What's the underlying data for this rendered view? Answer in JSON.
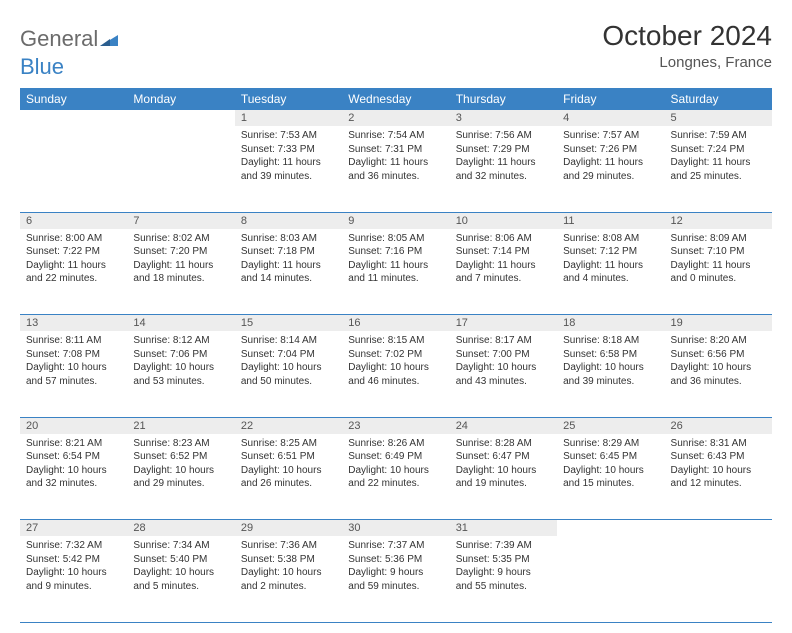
{
  "brand": {
    "part1": "General",
    "part2": "Blue"
  },
  "title": "October 2024",
  "location": "Longnes, France",
  "weekday_header_bg": "#3a82c4",
  "weekday_header_fg": "#ffffff",
  "daynum_bg": "#ededed",
  "row_divider_color": "#3a82c4",
  "weekdays": [
    "Sunday",
    "Monday",
    "Tuesday",
    "Wednesday",
    "Thursday",
    "Friday",
    "Saturday"
  ],
  "weeks": [
    [
      null,
      null,
      {
        "n": "1",
        "sr": "Sunrise: 7:53 AM",
        "ss": "Sunset: 7:33 PM",
        "d1": "Daylight: 11 hours",
        "d2": "and 39 minutes."
      },
      {
        "n": "2",
        "sr": "Sunrise: 7:54 AM",
        "ss": "Sunset: 7:31 PM",
        "d1": "Daylight: 11 hours",
        "d2": "and 36 minutes."
      },
      {
        "n": "3",
        "sr": "Sunrise: 7:56 AM",
        "ss": "Sunset: 7:29 PM",
        "d1": "Daylight: 11 hours",
        "d2": "and 32 minutes."
      },
      {
        "n": "4",
        "sr": "Sunrise: 7:57 AM",
        "ss": "Sunset: 7:26 PM",
        "d1": "Daylight: 11 hours",
        "d2": "and 29 minutes."
      },
      {
        "n": "5",
        "sr": "Sunrise: 7:59 AM",
        "ss": "Sunset: 7:24 PM",
        "d1": "Daylight: 11 hours",
        "d2": "and 25 minutes."
      }
    ],
    [
      {
        "n": "6",
        "sr": "Sunrise: 8:00 AM",
        "ss": "Sunset: 7:22 PM",
        "d1": "Daylight: 11 hours",
        "d2": "and 22 minutes."
      },
      {
        "n": "7",
        "sr": "Sunrise: 8:02 AM",
        "ss": "Sunset: 7:20 PM",
        "d1": "Daylight: 11 hours",
        "d2": "and 18 minutes."
      },
      {
        "n": "8",
        "sr": "Sunrise: 8:03 AM",
        "ss": "Sunset: 7:18 PM",
        "d1": "Daylight: 11 hours",
        "d2": "and 14 minutes."
      },
      {
        "n": "9",
        "sr": "Sunrise: 8:05 AM",
        "ss": "Sunset: 7:16 PM",
        "d1": "Daylight: 11 hours",
        "d2": "and 11 minutes."
      },
      {
        "n": "10",
        "sr": "Sunrise: 8:06 AM",
        "ss": "Sunset: 7:14 PM",
        "d1": "Daylight: 11 hours",
        "d2": "and 7 minutes."
      },
      {
        "n": "11",
        "sr": "Sunrise: 8:08 AM",
        "ss": "Sunset: 7:12 PM",
        "d1": "Daylight: 11 hours",
        "d2": "and 4 minutes."
      },
      {
        "n": "12",
        "sr": "Sunrise: 8:09 AM",
        "ss": "Sunset: 7:10 PM",
        "d1": "Daylight: 11 hours",
        "d2": "and 0 minutes."
      }
    ],
    [
      {
        "n": "13",
        "sr": "Sunrise: 8:11 AM",
        "ss": "Sunset: 7:08 PM",
        "d1": "Daylight: 10 hours",
        "d2": "and 57 minutes."
      },
      {
        "n": "14",
        "sr": "Sunrise: 8:12 AM",
        "ss": "Sunset: 7:06 PM",
        "d1": "Daylight: 10 hours",
        "d2": "and 53 minutes."
      },
      {
        "n": "15",
        "sr": "Sunrise: 8:14 AM",
        "ss": "Sunset: 7:04 PM",
        "d1": "Daylight: 10 hours",
        "d2": "and 50 minutes."
      },
      {
        "n": "16",
        "sr": "Sunrise: 8:15 AM",
        "ss": "Sunset: 7:02 PM",
        "d1": "Daylight: 10 hours",
        "d2": "and 46 minutes."
      },
      {
        "n": "17",
        "sr": "Sunrise: 8:17 AM",
        "ss": "Sunset: 7:00 PM",
        "d1": "Daylight: 10 hours",
        "d2": "and 43 minutes."
      },
      {
        "n": "18",
        "sr": "Sunrise: 8:18 AM",
        "ss": "Sunset: 6:58 PM",
        "d1": "Daylight: 10 hours",
        "d2": "and 39 minutes."
      },
      {
        "n": "19",
        "sr": "Sunrise: 8:20 AM",
        "ss": "Sunset: 6:56 PM",
        "d1": "Daylight: 10 hours",
        "d2": "and 36 minutes."
      }
    ],
    [
      {
        "n": "20",
        "sr": "Sunrise: 8:21 AM",
        "ss": "Sunset: 6:54 PM",
        "d1": "Daylight: 10 hours",
        "d2": "and 32 minutes."
      },
      {
        "n": "21",
        "sr": "Sunrise: 8:23 AM",
        "ss": "Sunset: 6:52 PM",
        "d1": "Daylight: 10 hours",
        "d2": "and 29 minutes."
      },
      {
        "n": "22",
        "sr": "Sunrise: 8:25 AM",
        "ss": "Sunset: 6:51 PM",
        "d1": "Daylight: 10 hours",
        "d2": "and 26 minutes."
      },
      {
        "n": "23",
        "sr": "Sunrise: 8:26 AM",
        "ss": "Sunset: 6:49 PM",
        "d1": "Daylight: 10 hours",
        "d2": "and 22 minutes."
      },
      {
        "n": "24",
        "sr": "Sunrise: 8:28 AM",
        "ss": "Sunset: 6:47 PM",
        "d1": "Daylight: 10 hours",
        "d2": "and 19 minutes."
      },
      {
        "n": "25",
        "sr": "Sunrise: 8:29 AM",
        "ss": "Sunset: 6:45 PM",
        "d1": "Daylight: 10 hours",
        "d2": "and 15 minutes."
      },
      {
        "n": "26",
        "sr": "Sunrise: 8:31 AM",
        "ss": "Sunset: 6:43 PM",
        "d1": "Daylight: 10 hours",
        "d2": "and 12 minutes."
      }
    ],
    [
      {
        "n": "27",
        "sr": "Sunrise: 7:32 AM",
        "ss": "Sunset: 5:42 PM",
        "d1": "Daylight: 10 hours",
        "d2": "and 9 minutes."
      },
      {
        "n": "28",
        "sr": "Sunrise: 7:34 AM",
        "ss": "Sunset: 5:40 PM",
        "d1": "Daylight: 10 hours",
        "d2": "and 5 minutes."
      },
      {
        "n": "29",
        "sr": "Sunrise: 7:36 AM",
        "ss": "Sunset: 5:38 PM",
        "d1": "Daylight: 10 hours",
        "d2": "and 2 minutes."
      },
      {
        "n": "30",
        "sr": "Sunrise: 7:37 AM",
        "ss": "Sunset: 5:36 PM",
        "d1": "Daylight: 9 hours",
        "d2": "and 59 minutes."
      },
      {
        "n": "31",
        "sr": "Sunrise: 7:39 AM",
        "ss": "Sunset: 5:35 PM",
        "d1": "Daylight: 9 hours",
        "d2": "and 55 minutes."
      },
      null,
      null
    ]
  ]
}
